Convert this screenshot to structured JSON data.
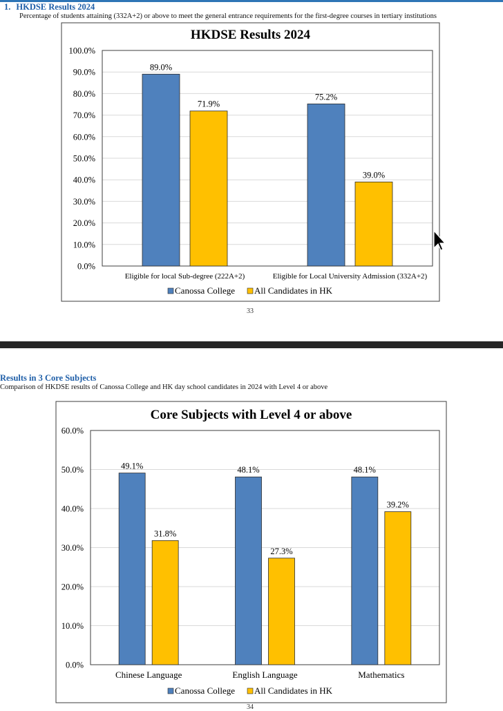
{
  "section1": {
    "number": "1.",
    "title": "HKDSE Results 2024",
    "subtitle": "Percentage of students attaining (332A+2) or above to meet the general entrance requirements for the first-degree courses in tertiary institutions",
    "page_number": "33"
  },
  "section2": {
    "title": "Results in 3 Core Subjects",
    "subtitle": "Comparison of HKDSE results of Canossa College and HK day school candidates in 2024 with Level 4 or above",
    "page_number": "34"
  },
  "colors": {
    "canossa": "#4f81bd",
    "hk": "#ffc000",
    "accent": "#1f5fa8"
  },
  "chart_data": [
    {
      "type": "bar",
      "title": "HKDSE Results 2024",
      "categories": [
        "Eligible for local Sub-degree (222A+2)",
        "Eligible for Local University Admission (332A+2)"
      ],
      "series": [
        {
          "name": "Canossa College",
          "values": [
            89.0,
            75.2
          ]
        },
        {
          "name": "All Candidates in HK",
          "values": [
            71.9,
            39.0
          ]
        }
      ],
      "ylim": [
        0,
        100
      ],
      "yticks": [
        "0.0%",
        "10.0%",
        "20.0%",
        "30.0%",
        "40.0%",
        "50.0%",
        "60.0%",
        "70.0%",
        "80.0%",
        "90.0%",
        "100.0%"
      ],
      "data_labels": [
        [
          "89.0%",
          "75.2%"
        ],
        [
          "71.9%",
          "39.0%"
        ]
      ],
      "legend": "bottom",
      "grid": true
    },
    {
      "type": "bar",
      "title": "Core Subjects with Level 4 or above",
      "categories": [
        "Chinese Language",
        "English Language",
        "Mathematics"
      ],
      "series": [
        {
          "name": "Canossa College",
          "values": [
            49.1,
            48.1,
            48.1
          ]
        },
        {
          "name": "All Candidates in HK",
          "values": [
            31.8,
            27.3,
            39.2
          ]
        }
      ],
      "ylim": [
        0,
        60
      ],
      "yticks": [
        "0.0%",
        "10.0%",
        "20.0%",
        "30.0%",
        "40.0%",
        "50.0%",
        "60.0%"
      ],
      "data_labels": [
        [
          "49.1%",
          "48.1%",
          "48.1%"
        ],
        [
          "31.8%",
          "27.3%",
          "39.2%"
        ]
      ],
      "legend": "bottom",
      "grid": true
    }
  ]
}
